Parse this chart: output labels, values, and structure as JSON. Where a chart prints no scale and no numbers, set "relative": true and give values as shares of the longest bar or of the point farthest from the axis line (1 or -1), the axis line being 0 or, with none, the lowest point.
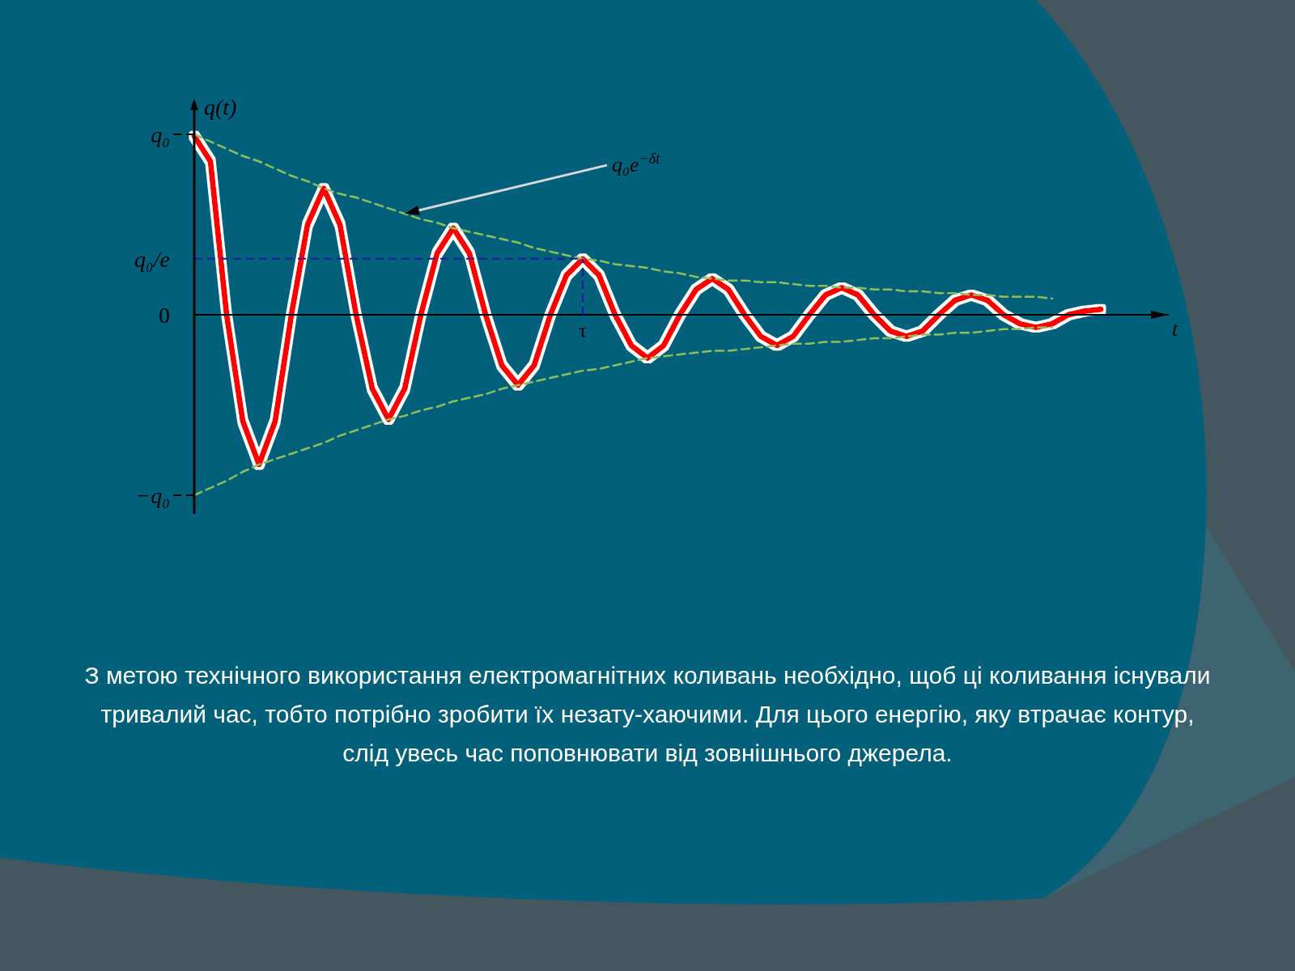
{
  "chart_data": {
    "type": "line",
    "xlabel": "t",
    "ylabel": "q(t)",
    "categories": [
      null,
      null,
      null,
      null,
      null,
      null,
      null,
      null,
      null,
      null,
      null,
      null,
      null,
      null,
      null,
      null,
      null,
      null,
      null,
      null,
      null,
      null,
      null,
      null,
      null,
      null,
      null,
      null,
      null,
      null,
      null,
      null,
      null,
      null,
      null,
      null,
      null,
      null,
      null,
      null,
      null,
      null,
      null,
      null,
      null,
      null,
      null,
      null,
      null,
      null,
      null,
      null,
      null,
      null,
      null,
      null,
      null
    ],
    "relative": true,
    "series": [
      {
        "color": "#ff0000",
        "values": [
          0.99,
          0.85,
          0,
          -0.59,
          -0.83,
          -0.59,
          0,
          0.5,
          0.7,
          0.5,
          0,
          -0.41,
          -0.58,
          -0.41,
          0,
          0.34,
          0.48,
          0.34,
          0,
          -0.28,
          -0.39,
          -0.28,
          0,
          0.22,
          0.31,
          0.22,
          0,
          -0.17,
          -0.24,
          -0.17,
          0,
          0.14,
          0.2,
          0.14,
          0,
          -0.12,
          -0.17,
          -0.12,
          0,
          0.11,
          0.15,
          0.11,
          0,
          -0.09,
          -0.12,
          -0.09,
          0,
          0.08,
          0.11,
          0.08,
          0,
          -0.05,
          -0.07,
          -0.05,
          0,
          0.02,
          0.03
        ]
      },
      {
        "color": "#8fbf5a",
        "line_style": "dashed",
        "values": [
          1.0,
          0.96,
          0.92,
          0.88,
          0.85,
          0.81,
          0.77,
          0.74,
          0.7,
          0.67,
          0.65,
          0.62,
          0.59,
          0.56,
          0.53,
          0.51,
          0.48,
          0.46,
          0.44,
          0.42,
          0.4,
          0.37,
          0.35,
          0.33,
          0.31,
          0.3,
          0.28,
          0.27,
          0.26,
          0.24,
          0.23,
          0.21,
          0.2,
          0.19,
          0.19,
          0.18,
          0.18,
          0.17,
          0.16,
          0.16,
          0.15,
          0.15,
          0.14,
          0.14,
          0.13,
          0.13,
          0.12,
          0.12,
          0.11,
          0.11,
          0.1,
          0.1,
          0.1,
          0.09,
          null,
          null,
          null
        ]
      },
      {
        "color": "#8fbf5a",
        "line_style": "dashed",
        "values": [
          -1.0,
          -0.96,
          -0.92,
          -0.87,
          -0.83,
          -0.8,
          -0.77,
          -0.74,
          -0.71,
          -0.67,
          -0.64,
          -0.61,
          -0.58,
          -0.56,
          -0.53,
          -0.51,
          -0.48,
          -0.46,
          -0.44,
          -0.41,
          -0.39,
          -0.37,
          -0.35,
          -0.33,
          -0.31,
          -0.3,
          -0.28,
          -0.26,
          -0.24,
          -0.23,
          -0.22,
          -0.21,
          -0.2,
          -0.2,
          -0.19,
          -0.18,
          -0.17,
          -0.16,
          -0.16,
          -0.15,
          -0.15,
          -0.14,
          -0.13,
          -0.13,
          -0.12,
          -0.11,
          -0.11,
          -0.1,
          -0.1,
          -0.09,
          -0.08,
          -0.08,
          -0.07,
          -0.07,
          null,
          null,
          null
        ]
      }
    ],
    "ref_lines": [
      {
        "axis": "y",
        "value": 1,
        "label": "q₀",
        "color": "#000000",
        "line_style": "dashed"
      },
      {
        "axis": "y",
        "value": 0.31,
        "label": "q₀/e",
        "color": "#1a1aa0",
        "line_style": "dashed"
      },
      {
        "axis": "y",
        "value": 0,
        "label": "0",
        "color": "#000000",
        "line_style": "solid"
      },
      {
        "axis": "y",
        "value": -1,
        "label": "−q₀",
        "color": "#000000",
        "line_style": "dashed"
      },
      {
        "axis": "x",
        "label": "τ",
        "color": "#1a1aa0",
        "line_style": "dashed"
      }
    ],
    "annotations": [
      "q₀e$^{−δt}$",
      "З метою технічного використання електромагнітних коливань необхідно, щоб ці коливання існували тривалий час, тобто потрібно зробити їх незату-хаючими. Для цього енергію, яку втрачає контур, слід увесь час поповнювати від зовнішнього джерела."
    ]
  }
}
